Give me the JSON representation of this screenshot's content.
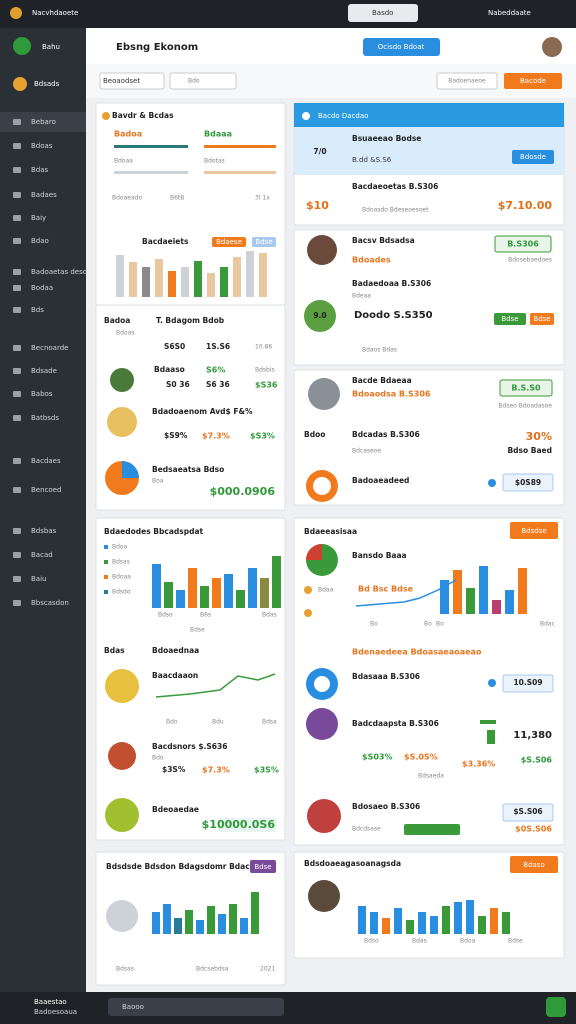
{
  "system_bar": {
    "app": "Nacvhdaoete",
    "search": "Basdo",
    "user": "Nabeddaate"
  },
  "header": {
    "brand": "Bahu",
    "title": "Ebsng Ekonom",
    "button": "Ocisdo Bdoat"
  },
  "sidebar": {
    "brand": "Bdsads",
    "items": [
      "Bebaro",
      "Bdoas",
      "Bdas",
      "Badaes",
      "Baiy",
      "Bdao",
      "Badoaetas desd",
      "Bodaa",
      "Bds",
      "Becnoarde",
      "Bdsade",
      "Babos",
      "Batbsds",
      "Bacdaes",
      "Bencoed",
      "Bdsbas",
      "Bacad",
      "Baiu",
      "Bbscasdon"
    ]
  },
  "toolbar": {
    "select": "Beoaodset",
    "search": "Bdo",
    "filter": "Badoenaeoe",
    "action": "Bacode"
  },
  "left_card_1": {
    "title": "Bavdr & Bcdas",
    "labels": [
      "Badoa",
      "Bdaaa",
      "Bdoaa",
      "Bdotas"
    ],
    "row": [
      "Bdoaeado",
      "B6tB",
      "3l 1x"
    ],
    "chart_title": "Bacdaeiets",
    "badges": [
      "Bdaese",
      "Bdse"
    ]
  },
  "left_card_2": {
    "header": [
      "Badoa",
      "T. Bdagom Bdob"
    ],
    "sub": "Bdoas",
    "row1": [
      "S6S0",
      "1S.S6",
      "10.86"
    ],
    "row2": [
      "Bdaaso",
      "S6%",
      "Bdsbis"
    ],
    "row3": [
      "S0 36",
      "S6 36",
      "$S36"
    ],
    "row4": "Bdadoaenom Avd$ F&%",
    "row5": [
      "$S9%",
      "$7.3%",
      "$S3%"
    ],
    "row6": [
      "Bedsaeatsa Bdso",
      "Boa",
      "$000.0906"
    ]
  },
  "left_card_3": {
    "title": "Bdaedodes Bbcadspdat",
    "legend": [
      "Bdoa",
      "Bdsas",
      "Bdoaa",
      "Bdsdo"
    ],
    "axis": [
      "Bdso",
      "B6s",
      "Bdas"
    ],
    "foot": "Bdse",
    "sub": [
      "Bdas",
      "Bdoaednaa"
    ],
    "line_label": "Baacdaaon",
    "line_axis": [
      "Bdo",
      "Bdu",
      "Bdsa"
    ],
    "row1": [
      "Bacdsnors $.S636",
      "Bdo"
    ],
    "row2": [
      "$3S%",
      "$7.3%",
      "$3S%"
    ],
    "row3": [
      "Bdeoaedae",
      "$10000.0S6"
    ]
  },
  "left_card_4": {
    "title": "Bdsdsde Bdsdon Bdagsdomr Bdaca",
    "badge": "Bdse",
    "foot": [
      "Bdsas",
      "Bdcsebdsa",
      "2021"
    ]
  },
  "right_card_a": {
    "header": "Bacdo Dacdao",
    "title": "Bsuaeeao Bodse",
    "num": "7/0",
    "sub": "B.dd &S.S6",
    "button": "Bdosde",
    "row": "Bacdaeoetas B.S306",
    "big": "$10",
    "amount": "$7.10.00",
    "note": "Bdoasdo Bdeseoesoet"
  },
  "right_card_b": {
    "name": "Bacsv Bdsadsa",
    "badge": "B.S306",
    "sub": [
      "Bdoades",
      "Bdosebaedoes"
    ],
    "row": "Badaedoaa B.S306",
    "row_sub": "Bdeaa",
    "num": "9.0",
    "main": "Doodo S.S350",
    "tags": [
      "Bdse",
      "Bdse"
    ],
    "foot": "Bdaos Bdas"
  },
  "right_card_c": {
    "name": "Bacde Bdaeaa",
    "badge": "B.S.S0",
    "sub": "Bdoaodsa B.S306",
    "note": "Bdseo Bdoadasoe",
    "row": [
      "Bdoo",
      "Bdcadas B.S306",
      "30%"
    ],
    "row_sub": [
      "Bdcaseoe",
      "Bdso Baed"
    ],
    "last": [
      "Badoaeadeed",
      "$0S89"
    ]
  },
  "right_card_d": {
    "title": "Bdaeeasisaa",
    "button": "Bdsdse",
    "chart_title": "Bansdo Baaa",
    "legend": [
      "Bdaa",
      "Bd Bsc Bdse"
    ],
    "axis": [
      "Bo",
      "Bo",
      "Bo",
      "Bdac"
    ],
    "sub": "Bdenaedeea Bdoasaeaoaeao",
    "r1": [
      "Bdasaaa B.S306",
      "10.S09"
    ],
    "r2": [
      "Badcdaapsta B.S306",
      "11,380"
    ],
    "r3": [
      "$S03%",
      "$S.0S%",
      "$3.36%",
      "$S.S06"
    ],
    "r3_sub": "Bdsaeda",
    "r4": [
      "Bdosaeo B.S306",
      "$S.S06"
    ],
    "r5": [
      "Bdcdsase",
      "$0S.S06"
    ]
  },
  "right_card_e": {
    "title": "Bdsdoaeagasoanagsda",
    "button": "Bdaso",
    "axis": [
      "Bdso",
      "Bdas",
      "Bdoa",
      "Bdse"
    ]
  },
  "bottom_bar": {
    "brand": "Baaestao",
    "sub": "Badoesoaua",
    "search": "Baooo"
  }
}
